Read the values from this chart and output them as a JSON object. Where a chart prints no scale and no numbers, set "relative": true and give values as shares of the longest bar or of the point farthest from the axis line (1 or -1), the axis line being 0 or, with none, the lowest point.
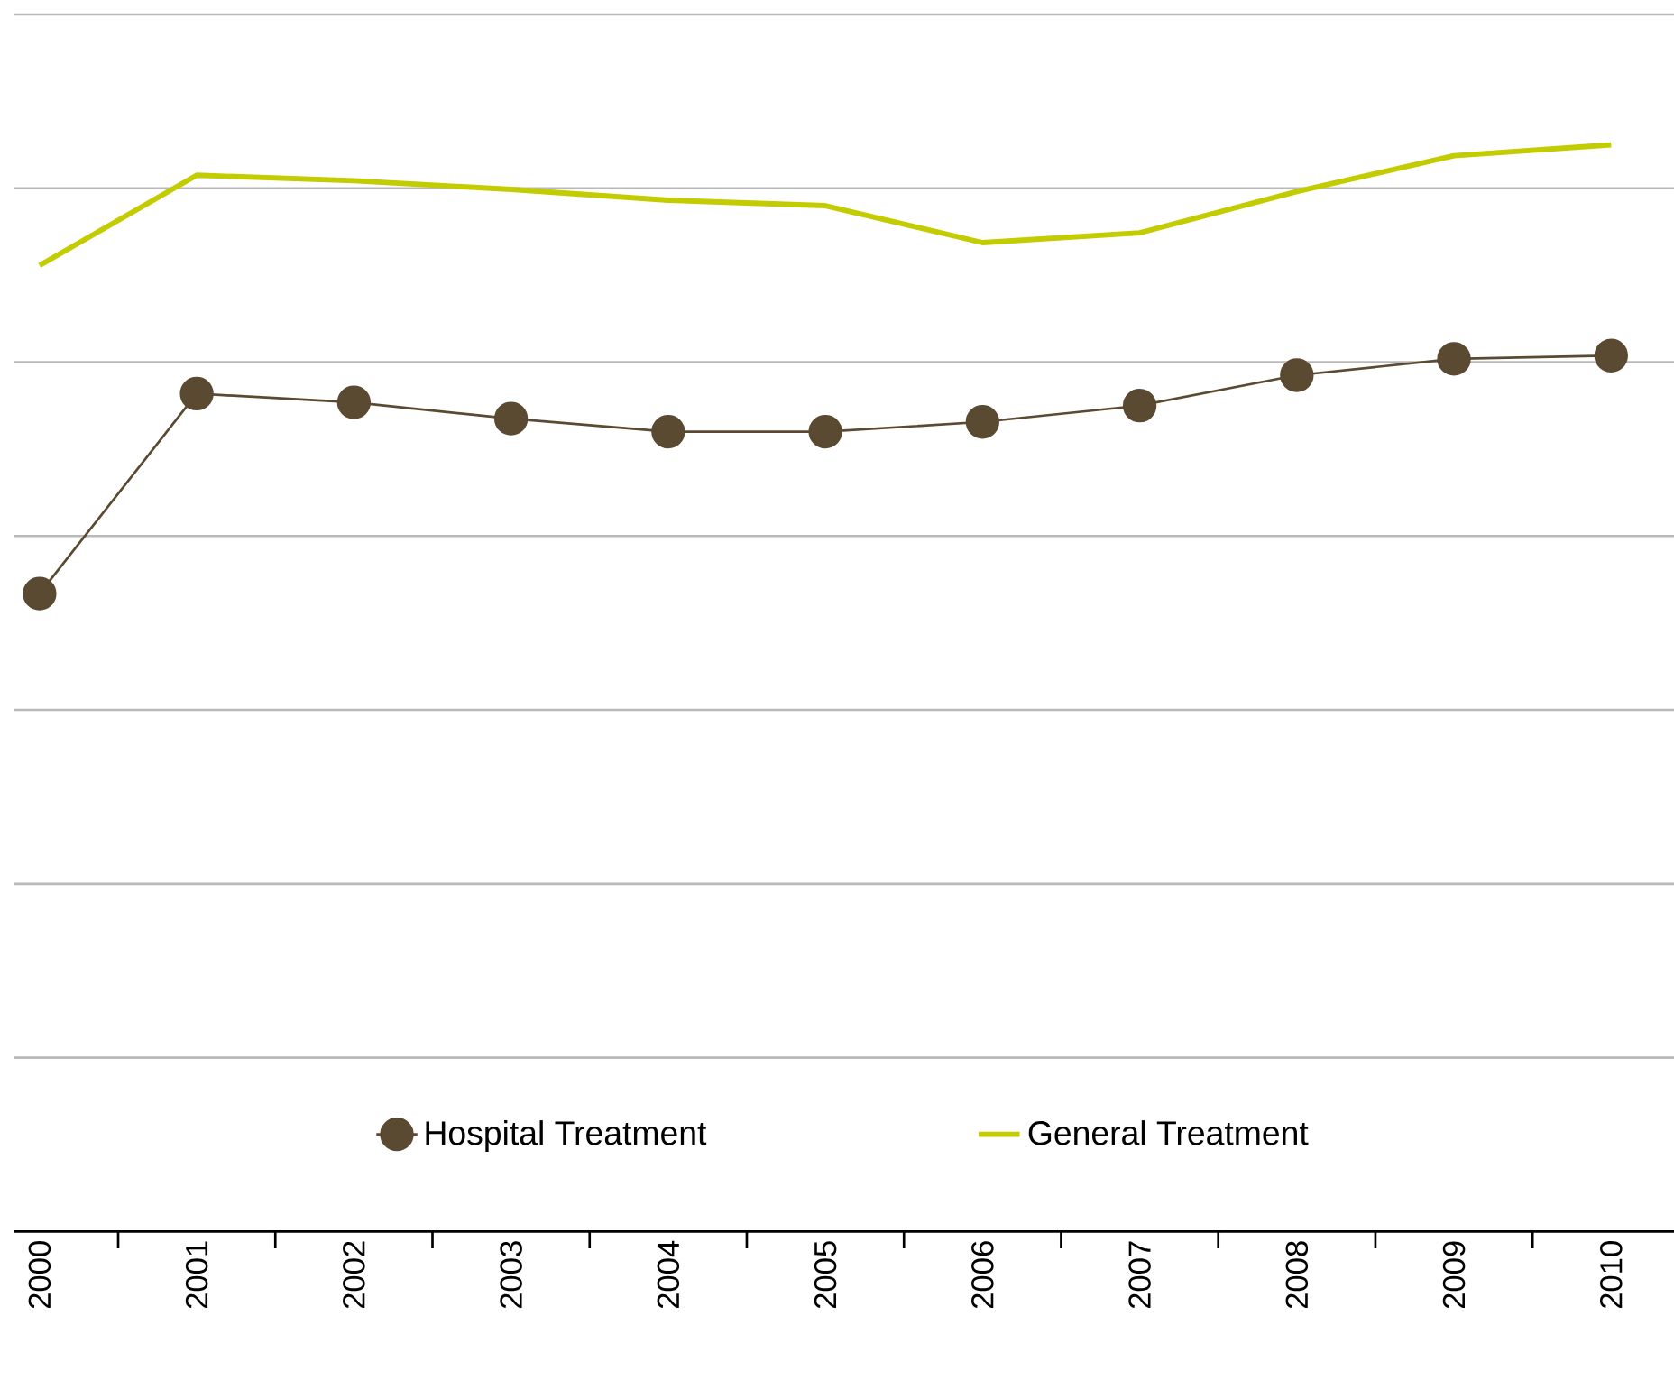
{
  "chart_data": {
    "type": "line",
    "relative": true,
    "categories": [
      "2000",
      "2001",
      "2002",
      "2003",
      "2004",
      "2005",
      "2006",
      "2007",
      "2008",
      "2009",
      "2010"
    ],
    "series": [
      {
        "name": "Hospital Treatment",
        "color": "#5a4a32",
        "marker": "circle",
        "values": [
          0.587,
          0.771,
          0.763,
          0.748,
          0.736,
          0.736,
          0.745,
          0.76,
          0.788,
          0.803,
          0.806
        ]
      },
      {
        "name": "General Treatment",
        "color": "#c3cc00",
        "marker": "none",
        "values": [
          0.889,
          0.972,
          0.967,
          0.959,
          0.949,
          0.944,
          0.91,
          0.919,
          0.957,
          0.99,
          1
        ]
      }
    ],
    "grid": "y",
    "legend": "bottom"
  }
}
